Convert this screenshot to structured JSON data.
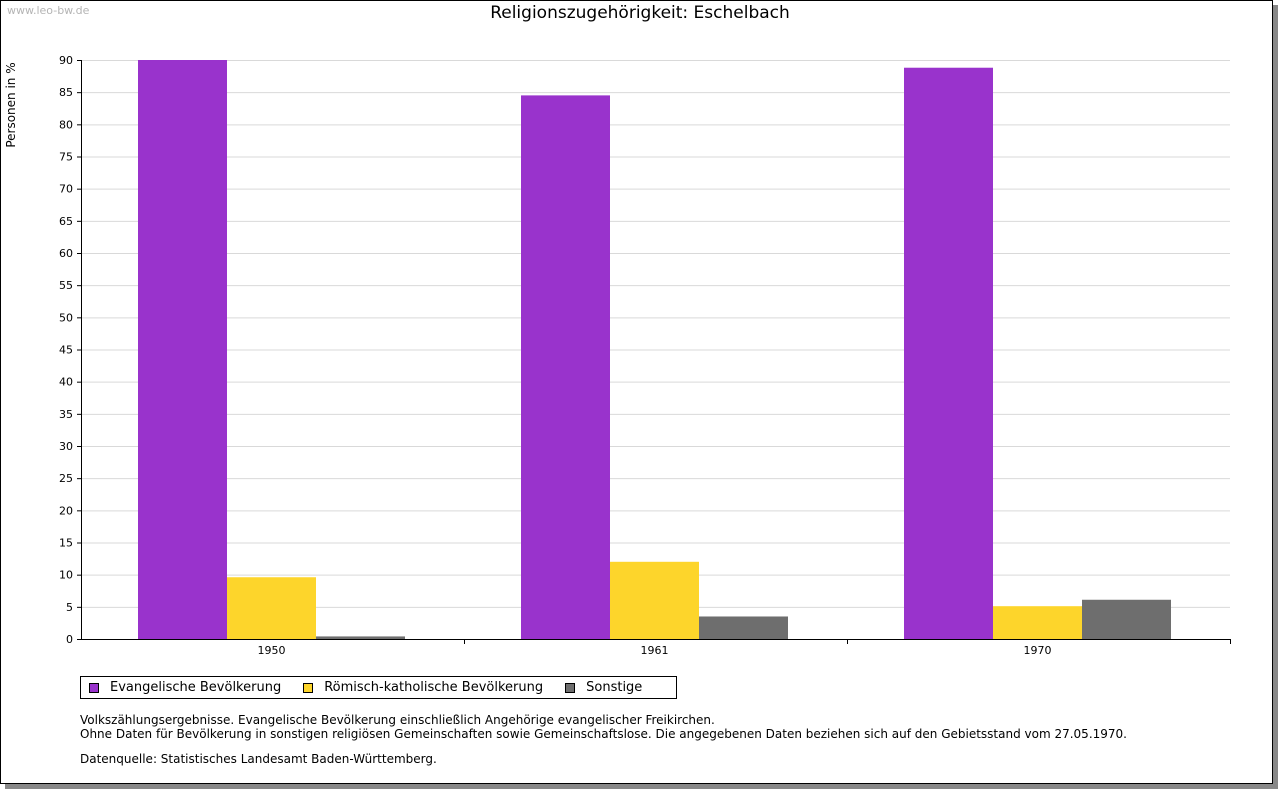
{
  "watermark": "www.leo-bw.de",
  "chart_data": {
    "type": "bar",
    "title": "Religionszugehörigkeit: Eschelbach",
    "xlabel": "",
    "ylabel": "Personen in %",
    "categories": [
      "1950",
      "1961",
      "1970"
    ],
    "series": [
      {
        "name": "Evangelische Bevölkerung",
        "color": "#9933cc",
        "values": [
          90.0,
          84.5,
          88.8
        ]
      },
      {
        "name": "Römisch-katholische Bevölkerung",
        "color": "#fdd52b",
        "values": [
          9.6,
          12.0,
          5.1
        ]
      },
      {
        "name": "Sonstige",
        "color": "#6e6e6e",
        "values": [
          0.4,
          3.5,
          6.1
        ]
      }
    ],
    "ylim": [
      0,
      90
    ],
    "yticks": [
      "0",
      "5",
      "10",
      "15",
      "20",
      "25",
      "30",
      "35",
      "40",
      "45",
      "50",
      "55",
      "60",
      "65",
      "70",
      "75",
      "80",
      "85",
      "90"
    ],
    "grid": true,
    "legend_position": "bottom"
  },
  "notes": {
    "line1": "Volkszählungsergebnisse. Evangelische Bevölkerung einschließlich Angehörige evangelischer Freikirchen.",
    "line2": "Ohne Daten für Bevölkerung in sonstigen religiösen Gemeinschaften sowie Gemeinschaftslose. Die angegebenen Daten beziehen sich auf den Gebietsstand vom 27.05.1970.",
    "source": "Datenquelle: Statistisches Landesamt Baden-Württemberg."
  }
}
